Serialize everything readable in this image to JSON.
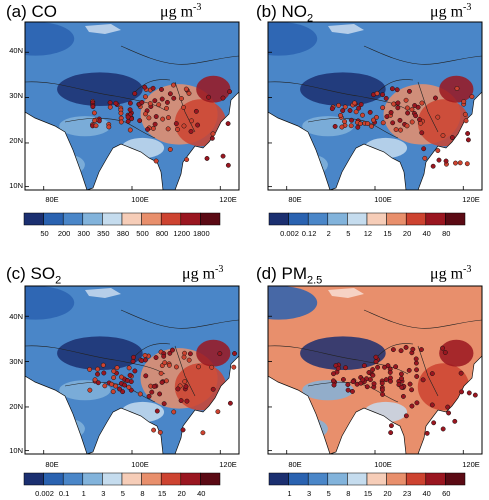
{
  "panels": [
    {
      "id": "co",
      "prefix": "(a) CO",
      "sub": "",
      "unit_base": "μg m",
      "unit_exp": "-3",
      "lat_labels": [
        "40N",
        "30N",
        "20N",
        "10N"
      ],
      "lon_labels": [
        "80E",
        "100E",
        "120E"
      ],
      "colorbar_labels": [
        "50",
        "200",
        "300",
        "350",
        "380",
        "500",
        "800",
        "1200",
        "1800"
      ],
      "colors": [
        "#1b2f70",
        "#2a62b0",
        "#4a86c8",
        "#82b3db",
        "#c5dcee",
        "#f6cdb8",
        "#e88f6c",
        "#cd4330",
        "#9a1620",
        "#5b0a14"
      ],
      "base_color": "#4a86c8",
      "site_color": "#cd4330"
    },
    {
      "id": "no2",
      "prefix": "(b) NO",
      "sub": "2",
      "unit_base": "μg m",
      "unit_exp": "-3",
      "lat_labels": [
        "40N",
        "30N",
        "20N",
        "10N"
      ],
      "lon_labels": [
        "80E",
        "100E",
        "120E"
      ],
      "colorbar_labels": [
        "0.002",
        "0.12",
        "2",
        "5",
        "12",
        "15",
        "20",
        "40",
        "80"
      ],
      "colors": [
        "#1b2f70",
        "#2a62b0",
        "#4a86c8",
        "#82b3db",
        "#c5dcee",
        "#f6cdb8",
        "#e88f6c",
        "#cd4330",
        "#9a1620",
        "#5b0a14"
      ],
      "base_color": "#4a86c8",
      "site_color": "#cd4330"
    },
    {
      "id": "so2",
      "prefix": "(c) SO",
      "sub": "2",
      "unit_base": "μg m",
      "unit_exp": "-3",
      "lat_labels": [
        "40N",
        "30N",
        "20N",
        "10N"
      ],
      "lon_labels": [
        "80E",
        "100E",
        "120E"
      ],
      "colorbar_labels": [
        "0.002",
        "0.1",
        "1",
        "3",
        "5",
        "8",
        "15",
        "20",
        "40"
      ],
      "colors": [
        "#1b2f70",
        "#2a62b0",
        "#4a86c8",
        "#82b3db",
        "#c5dcee",
        "#f6cdb8",
        "#e88f6c",
        "#cd4330",
        "#9a1620",
        "#5b0a14"
      ],
      "base_color": "#4a86c8",
      "site_color": "#cd4330"
    },
    {
      "id": "pm25",
      "prefix": "(d) PM",
      "sub": "2.5",
      "unit_base": "μg m",
      "unit_exp": "-3",
      "lat_labels": [
        "40N",
        "30N",
        "20N",
        "10N"
      ],
      "lon_labels": [
        "80E",
        "100E",
        "120E"
      ],
      "colorbar_labels": [
        "1",
        "3",
        "5",
        "8",
        "15",
        "20",
        "23",
        "40",
        "60"
      ],
      "colors": [
        "#1b2f70",
        "#2a62b0",
        "#4a86c8",
        "#82b3db",
        "#c5dcee",
        "#f6cdb8",
        "#e88f6c",
        "#cd4330",
        "#9a1620",
        "#5b0a14"
      ],
      "base_color": "#e88f6c",
      "site_color": "#9a1620"
    }
  ]
}
